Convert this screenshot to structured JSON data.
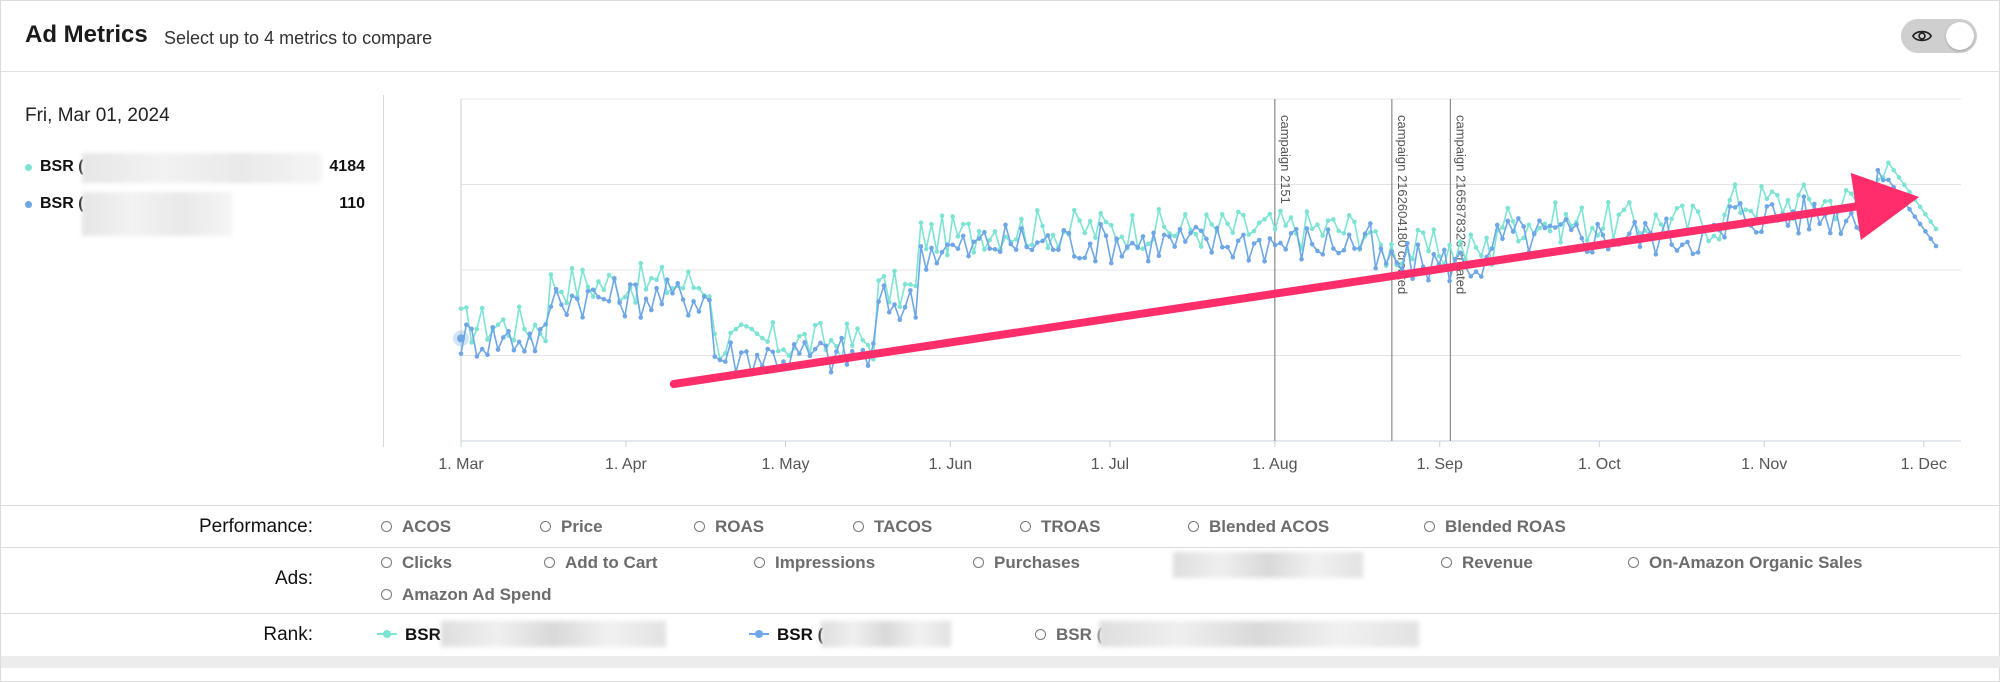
{
  "header": {
    "title": "Ad Metrics",
    "subtitle": "Select up to 4 metrics to compare",
    "visibility_toggle_icon": "eye-icon"
  },
  "tooltip": {
    "date": "Fri, Mar 01, 2024",
    "rows": [
      {
        "name": "BSR (",
        "value": "4184",
        "color": "#7de3d3"
      },
      {
        "name": "BSR (",
        "value": "110",
        "color": "#6ea6e6"
      }
    ]
  },
  "chart_data": {
    "type": "line",
    "x_tick_labels": [
      "1. Mar",
      "1. Apr",
      "1. May",
      "1. Jun",
      "1. Jul",
      "1. Aug",
      "1. Sep",
      "1. Oct",
      "1. Nov",
      "1. Dec"
    ],
    "x_range": [
      "2024-03-01",
      "2024-12-08"
    ],
    "grid": "horizontal",
    "annotations": [
      {
        "date": "2024-08-01",
        "label": "campaign 2151"
      },
      {
        "date": "2024-08-23",
        "label": "campaign 2162604180 created"
      },
      {
        "date": "2024-09-03",
        "label": "campaign 2165878326 created"
      }
    ],
    "series": [
      {
        "color": "#7de3d3"
      },
      {
        "color": "#6ea6e6"
      }
    ],
    "overlay_arrow": {
      "color": "#ff2d6a",
      "from": "2024-04-10",
      "to": "2024-12-02",
      "direction": "up-right"
    }
  },
  "metrics": {
    "performance": {
      "label": "Performance:",
      "options": [
        "ACOS",
        "Price",
        "ROAS",
        "TACOS",
        "TROAS",
        "Blended ACOS",
        "Blended ROAS"
      ]
    },
    "ads": {
      "label": "Ads:",
      "options": [
        "Clicks",
        "Add to Cart",
        "Impressions",
        "Purchases",
        "Revenue",
        "On-Amazon Organic Sales",
        "Amazon Ad Spend"
      ]
    },
    "rank": {
      "label": "Rank:",
      "options": [
        {
          "label": "BSR",
          "selected": true,
          "color": "#7de3d3"
        },
        {
          "label": "BSR (",
          "selected": true,
          "color": "#6ea6e6"
        },
        {
          "label": "BSR (",
          "selected": false
        }
      ]
    }
  }
}
